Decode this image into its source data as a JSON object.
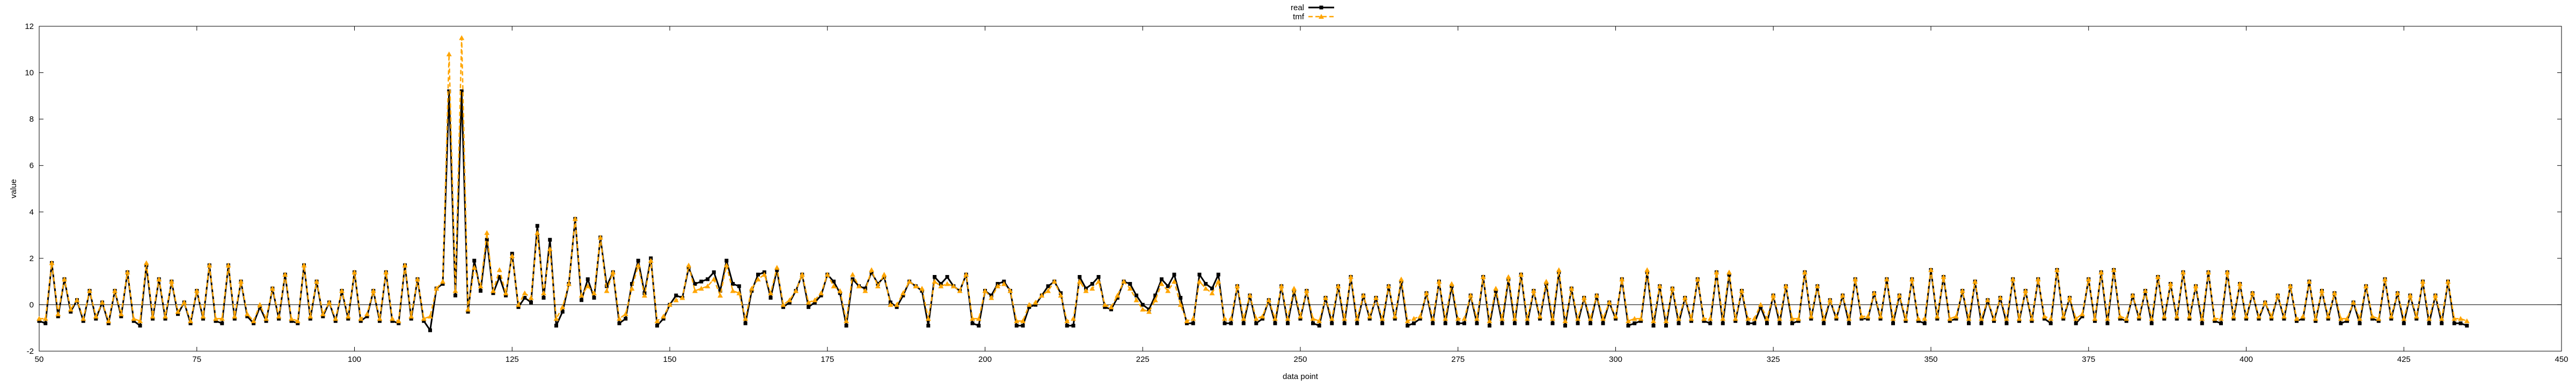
{
  "chart_data": {
    "type": "line",
    "title": "",
    "xlabel": "data point",
    "ylabel": "value",
    "xlim": [
      50,
      450
    ],
    "ylim": [
      -2,
      12
    ],
    "xticks": [
      50,
      75,
      100,
      125,
      150,
      175,
      200,
      225,
      250,
      275,
      300,
      325,
      350,
      375,
      400,
      425,
      450
    ],
    "yticks": [
      -2,
      0,
      2,
      4,
      6,
      8,
      10,
      12
    ],
    "grid": false,
    "legend_position": "top-center",
    "x_start": 50,
    "x_step": 1,
    "series": [
      {
        "name": "real",
        "color": "#000000",
        "marker": "square",
        "line_style": "solid",
        "values": [
          -0.7,
          -0.8,
          1.8,
          -0.5,
          1.1,
          -0.3,
          0.2,
          -0.7,
          0.6,
          -0.6,
          0.1,
          -0.8,
          0.6,
          -0.5,
          1.4,
          -0.7,
          -0.9,
          1.7,
          -0.6,
          1.1,
          -0.6,
          1.0,
          -0.4,
          0.1,
          -0.8,
          0.6,
          -0.6,
          1.7,
          -0.7,
          -0.8,
          1.7,
          -0.6,
          1.0,
          -0.5,
          -0.8,
          -0.1,
          -0.7,
          0.7,
          -0.6,
          1.3,
          -0.7,
          -0.8,
          1.7,
          -0.6,
          1.0,
          -0.5,
          0.1,
          -0.7,
          0.6,
          -0.6,
          1.4,
          -0.7,
          -0.5,
          0.6,
          -0.7,
          1.4,
          -0.7,
          -0.8,
          1.7,
          -0.6,
          1.1,
          -0.7,
          -1.1,
          0.7,
          0.9,
          9.2,
          0.4,
          9.2,
          -0.3,
          1.9,
          0.6,
          2.8,
          0.5,
          1.2,
          0.4,
          2.2,
          -0.1,
          0.3,
          0.1,
          3.4,
          0.3,
          2.8,
          -0.9,
          -0.3,
          0.9,
          3.7,
          0.2,
          1.1,
          0.3,
          2.9,
          0.8,
          1.4,
          -0.8,
          -0.6,
          0.9,
          1.9,
          0.5,
          2.0,
          -0.9,
          -0.6,
          0.0,
          0.4,
          0.3,
          1.6,
          0.9,
          1.0,
          1.1,
          1.4,
          0.6,
          1.9,
          0.9,
          0.8,
          -0.8,
          0.6,
          1.3,
          1.4,
          0.3,
          1.5,
          -0.1,
          0.1,
          0.6,
          1.3,
          -0.1,
          0.1,
          0.4,
          1.3,
          1.0,
          0.5,
          -0.9,
          1.1,
          0.8,
          0.7,
          1.4,
          0.9,
          1.2,
          0.1,
          -0.1,
          0.4,
          1.0,
          0.8,
          0.6,
          -0.9,
          1.2,
          0.9,
          1.2,
          0.8,
          0.6,
          1.3,
          -0.8,
          -0.9,
          0.6,
          0.4,
          0.9,
          1.0,
          0.6,
          -0.9,
          -0.9,
          -0.1,
          0.0,
          0.4,
          0.8,
          1.0,
          0.5,
          -0.9,
          -0.9,
          1.2,
          0.7,
          0.9,
          1.2,
          -0.1,
          -0.2,
          0.3,
          1.0,
          0.9,
          0.4,
          0.0,
          -0.2,
          0.4,
          1.1,
          0.8,
          1.3,
          0.3,
          -0.8,
          -0.8,
          1.3,
          0.9,
          0.7,
          1.3,
          -0.8,
          -0.8,
          0.8,
          -0.8,
          0.4,
          -0.8,
          -0.6,
          0.2,
          -0.8,
          0.8,
          -0.8,
          0.6,
          -0.6,
          0.6,
          -0.8,
          -0.9,
          0.3,
          -0.8,
          0.8,
          -0.8,
          1.2,
          -0.8,
          0.4,
          -0.6,
          0.3,
          -0.8,
          0.8,
          -0.6,
          1.0,
          -0.9,
          -0.8,
          -0.6,
          0.5,
          -0.8,
          1.0,
          -0.8,
          0.8,
          -0.8,
          -0.8,
          0.4,
          -0.8,
          1.2,
          -0.9,
          0.6,
          -0.8,
          1.1,
          -0.8,
          1.3,
          -0.8,
          0.6,
          -0.6,
          0.9,
          -0.8,
          1.4,
          -0.9,
          0.7,
          -0.8,
          0.3,
          -0.8,
          0.4,
          -0.8,
          0.1,
          -0.6,
          1.1,
          -0.9,
          -0.8,
          -0.7,
          1.4,
          -0.9,
          0.8,
          -0.9,
          0.7,
          -0.8,
          0.3,
          -0.7,
          1.1,
          -0.7,
          -0.8,
          1.4,
          -0.8,
          1.3,
          -0.7,
          0.6,
          -0.8,
          -0.8,
          -0.1,
          -0.8,
          0.4,
          -0.8,
          0.8,
          -0.8,
          -0.7,
          1.4,
          -0.6,
          0.8,
          -0.8,
          0.2,
          -0.6,
          0.4,
          -0.8,
          1.1,
          -0.6,
          -0.6,
          0.5,
          -0.6,
          1.1,
          -0.8,
          0.4,
          -0.7,
          1.1,
          -0.7,
          -0.8,
          1.5,
          -0.6,
          1.2,
          -0.7,
          -0.6,
          0.6,
          -0.8,
          1.0,
          -0.8,
          0.2,
          -0.7,
          0.3,
          -0.8,
          1.1,
          -0.7,
          0.6,
          -0.7,
          1.1,
          -0.6,
          -0.8,
          1.5,
          -0.6,
          0.3,
          -0.8,
          -0.5,
          1.1,
          -0.7,
          1.4,
          -0.8,
          1.5,
          -0.6,
          -0.7,
          0.4,
          -0.6,
          0.6,
          -0.8,
          1.2,
          -0.6,
          0.9,
          -0.6,
          1.4,
          -0.6,
          0.8,
          -0.8,
          1.4,
          -0.7,
          -0.8,
          1.4,
          -0.6,
          0.9,
          -0.6,
          0.5,
          -0.6,
          0.1,
          -0.6,
          0.4,
          -0.6,
          0.8,
          -0.7,
          -0.6,
          1.0,
          -0.7,
          0.6,
          -0.6,
          0.5,
          -0.8,
          -0.7,
          0.1,
          -0.8,
          0.8,
          -0.6,
          -0.7,
          1.1,
          -0.6,
          0.5,
          -0.8,
          0.4,
          -0.6,
          1.0,
          -0.8,
          0.4,
          -0.8,
          1.0,
          -0.8,
          -0.8,
          -0.9
        ]
      },
      {
        "name": "tmf",
        "color": "#ffa500",
        "marker": "triangle",
        "line_style": "dashed",
        "values": [
          -0.6,
          -0.6,
          1.8,
          -0.4,
          1.1,
          -0.2,
          0.2,
          -0.6,
          0.6,
          -0.5,
          0.1,
          -0.7,
          0.6,
          -0.4,
          1.4,
          -0.6,
          -0.7,
          1.8,
          -0.5,
          1.1,
          -0.5,
          1.0,
          -0.3,
          0.1,
          -0.7,
          0.6,
          -0.5,
          1.7,
          -0.6,
          -0.6,
          1.7,
          -0.5,
          1.0,
          -0.4,
          -0.7,
          0.0,
          -0.6,
          0.7,
          -0.5,
          1.3,
          -0.6,
          -0.7,
          1.7,
          -0.5,
          1.0,
          -0.4,
          0.1,
          -0.6,
          0.6,
          -0.5,
          1.4,
          -0.6,
          -0.4,
          0.6,
          -0.6,
          1.4,
          -0.6,
          -0.7,
          1.7,
          -0.5,
          1.1,
          -0.6,
          -0.5,
          0.7,
          1.0,
          10.8,
          0.6,
          11.5,
          -0.2,
          1.6,
          0.8,
          3.1,
          0.6,
          1.5,
          0.5,
          2.1,
          0.0,
          0.5,
          0.3,
          3.1,
          0.5,
          2.4,
          -0.6,
          -0.1,
          0.9,
          3.7,
          0.4,
          0.8,
          0.5,
          2.9,
          0.6,
          1.4,
          -0.6,
          -0.4,
          0.7,
          1.7,
          0.4,
          1.9,
          -0.7,
          -0.5,
          0.0,
          0.2,
          0.3,
          1.7,
          0.6,
          0.7,
          0.8,
          1.1,
          0.4,
          1.7,
          0.6,
          0.5,
          -0.6,
          0.7,
          1.1,
          1.3,
          0.5,
          1.6,
          0.0,
          0.2,
          0.6,
          1.3,
          0.1,
          0.2,
          0.5,
          1.3,
          0.8,
          0.6,
          -0.7,
          1.3,
          0.8,
          0.6,
          1.5,
          0.8,
          1.3,
          0.0,
          0.0,
          0.5,
          1.0,
          0.8,
          0.7,
          -0.6,
          1.0,
          0.8,
          0.9,
          0.8,
          0.6,
          1.3,
          -0.6,
          -0.6,
          0.6,
          0.3,
          0.8,
          0.9,
          0.6,
          -0.7,
          -0.7,
          0.0,
          0.1,
          0.4,
          0.6,
          1.0,
          0.4,
          -0.7,
          -0.6,
          1.0,
          0.6,
          0.7,
          1.0,
          0.0,
          -0.1,
          0.4,
          1.0,
          0.7,
          0.2,
          -0.2,
          -0.3,
          0.2,
          0.9,
          0.6,
          1.0,
          0.0,
          -0.7,
          -0.6,
          1.0,
          0.7,
          0.5,
          1.0,
          -0.6,
          -0.6,
          0.8,
          -0.6,
          0.4,
          -0.6,
          -0.5,
          0.2,
          -0.6,
          0.8,
          -0.6,
          0.7,
          -0.5,
          0.6,
          -0.6,
          -0.7,
          0.3,
          -0.6,
          0.8,
          -0.6,
          1.2,
          -0.6,
          0.4,
          -0.5,
          0.3,
          -0.6,
          0.8,
          -0.5,
          1.1,
          -0.7,
          -0.6,
          -0.5,
          0.5,
          -0.6,
          1.0,
          -0.6,
          0.9,
          -0.6,
          -0.6,
          0.4,
          -0.6,
          1.2,
          -0.7,
          0.7,
          -0.6,
          1.2,
          -0.6,
          1.3,
          -0.6,
          0.6,
          -0.5,
          1.0,
          -0.6,
          1.5,
          -0.7,
          0.7,
          -0.6,
          0.3,
          -0.6,
          0.4,
          -0.6,
          0.1,
          -0.5,
          1.1,
          -0.7,
          -0.6,
          -0.6,
          1.5,
          -0.7,
          0.8,
          -0.7,
          0.7,
          -0.6,
          0.3,
          -0.6,
          1.1,
          -0.6,
          -0.6,
          1.4,
          -0.6,
          1.4,
          -0.6,
          0.6,
          -0.6,
          -0.6,
          0.0,
          -0.6,
          0.4,
          -0.6,
          0.8,
          -0.6,
          -0.6,
          1.4,
          -0.5,
          0.8,
          -0.6,
          0.2,
          -0.5,
          0.4,
          -0.6,
          1.1,
          -0.5,
          -0.5,
          0.5,
          -0.5,
          1.1,
          -0.6,
          0.4,
          -0.6,
          1.1,
          -0.6,
          -0.6,
          1.5,
          -0.5,
          1.2,
          -0.6,
          -0.5,
          0.6,
          -0.6,
          1.0,
          -0.6,
          0.2,
          -0.6,
          0.3,
          -0.6,
          1.1,
          -0.6,
          0.6,
          -0.6,
          1.1,
          -0.5,
          -0.6,
          1.5,
          -0.5,
          0.3,
          -0.6,
          -0.4,
          1.1,
          -0.6,
          1.4,
          -0.6,
          1.5,
          -0.5,
          -0.6,
          0.4,
          -0.5,
          0.6,
          -0.6,
          1.2,
          -0.5,
          0.9,
          -0.5,
          1.4,
          -0.5,
          0.8,
          -0.6,
          1.4,
          -0.6,
          -0.6,
          1.4,
          -0.5,
          0.9,
          -0.5,
          0.5,
          -0.5,
          0.1,
          -0.5,
          0.4,
          -0.5,
          0.8,
          -0.6,
          -0.5,
          1.0,
          -0.6,
          0.6,
          -0.5,
          0.5,
          -0.6,
          -0.6,
          0.1,
          -0.6,
          0.8,
          -0.5,
          -0.6,
          1.1,
          -0.5,
          0.5,
          -0.6,
          0.4,
          -0.5,
          1.0,
          -0.6,
          0.4,
          -0.6,
          1.0,
          -0.6,
          -0.6,
          -0.7
        ]
      }
    ]
  }
}
